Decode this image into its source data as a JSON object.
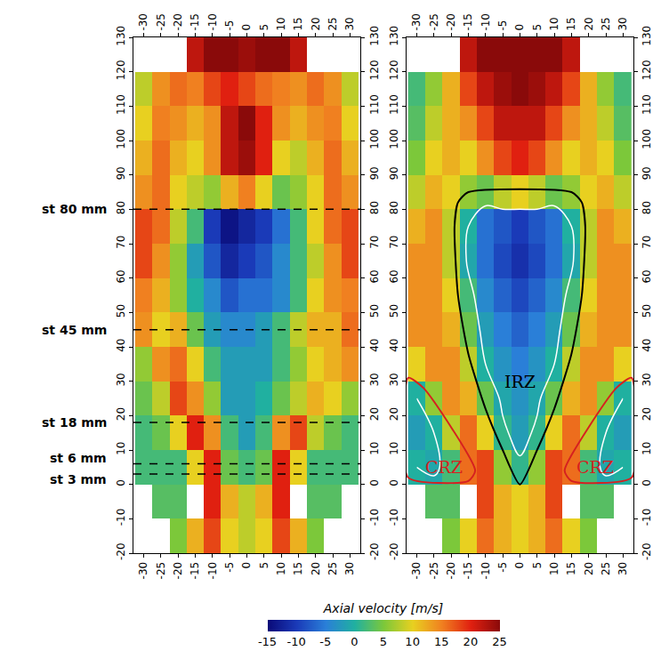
{
  "chart_data": [
    {
      "type": "heatmap",
      "x": [
        -30,
        -25,
        -20,
        -15,
        -10,
        -5,
        0,
        5,
        10,
        15,
        20,
        25,
        30
      ],
      "y": [
        -15,
        -5,
        5,
        15,
        25,
        35,
        45,
        55,
        65,
        75,
        85,
        95,
        105,
        115,
        125
      ],
      "z": [
        [
          null,
          null,
          5,
          12,
          18,
          10,
          8,
          10,
          18,
          12,
          5,
          null,
          null
        ],
        [
          null,
          3,
          3,
          null,
          20,
          12,
          8,
          12,
          20,
          null,
          3,
          3,
          null
        ],
        [
          2,
          2,
          2,
          10,
          20,
          4,
          2,
          4,
          20,
          10,
          2,
          2,
          2
        ],
        [
          2,
          4,
          10,
          20,
          14,
          2,
          -2,
          2,
          14,
          18,
          8,
          4,
          2
        ],
        [
          4,
          8,
          18,
          14,
          6,
          -2,
          -2,
          0,
          4,
          8,
          12,
          10,
          6
        ],
        [
          6,
          14,
          16,
          10,
          2,
          -2,
          -2,
          -2,
          2,
          6,
          10,
          12,
          14
        ],
        [
          14,
          10,
          12,
          4,
          -2,
          -4,
          -4,
          -2,
          2,
          8,
          12,
          12,
          16
        ],
        [
          15,
          12,
          6,
          0,
          -4,
          -8,
          -6,
          -6,
          -4,
          2,
          10,
          14,
          15
        ],
        [
          18,
          14,
          6,
          -2,
          -8,
          -12,
          -10,
          -8,
          -4,
          2,
          8,
          14,
          18
        ],
        [
          18,
          16,
          8,
          2,
          -10,
          -14,
          -12,
          -10,
          -6,
          2,
          10,
          16,
          18
        ],
        [
          14,
          16,
          10,
          8,
          6,
          12,
          15,
          10,
          4,
          6,
          10,
          16,
          14
        ],
        [
          12,
          16,
          12,
          10,
          14,
          22,
          24,
          20,
          10,
          8,
          12,
          16,
          12
        ],
        [
          10,
          15,
          14,
          12,
          14,
          22,
          25,
          20,
          14,
          12,
          14,
          15,
          10
        ],
        [
          8,
          14,
          16,
          15,
          18,
          20,
          18,
          16,
          15,
          14,
          16,
          14,
          8
        ],
        [
          null,
          null,
          null,
          22,
          25,
          25,
          24,
          25,
          25,
          22,
          null,
          null,
          null
        ]
      ],
      "xlim": [
        -33,
        33
      ],
      "ylim": [
        -20,
        130
      ],
      "xticks": [
        -30,
        -25,
        -20,
        -15,
        -10,
        -5,
        0,
        5,
        10,
        15,
        20,
        25,
        30
      ],
      "yticks": [
        -20,
        -10,
        0,
        10,
        20,
        30,
        40,
        50,
        60,
        70,
        80,
        90,
        100,
        110,
        120,
        130
      ],
      "stations": [
        {
          "label": "st 80 mm",
          "y": 80
        },
        {
          "label": "st 45 mm",
          "y": 45
        },
        {
          "label": "st 18 mm",
          "y": 18
        },
        {
          "label": "st 6 mm",
          "y": 6
        },
        {
          "label": "st 3 mm",
          "y": 3
        }
      ]
    },
    {
      "type": "heatmap",
      "x": [
        -30,
        -25,
        -20,
        -15,
        -10,
        -5,
        0,
        5,
        10,
        15,
        20,
        25,
        30
      ],
      "y": [
        -15,
        -5,
        5,
        15,
        25,
        35,
        45,
        55,
        65,
        75,
        85,
        95,
        105,
        115,
        125
      ],
      "z": [
        [
          null,
          null,
          5,
          10,
          16,
          12,
          10,
          12,
          16,
          10,
          5,
          null,
          null
        ],
        [
          null,
          3,
          3,
          null,
          18,
          12,
          10,
          12,
          18,
          null,
          3,
          3,
          null
        ],
        [
          0,
          -1,
          2,
          16,
          18,
          6,
          1,
          6,
          18,
          16,
          2,
          -1,
          0
        ],
        [
          -2,
          0,
          8,
          16,
          10,
          1,
          -2,
          1,
          10,
          16,
          8,
          0,
          -2
        ],
        [
          0,
          6,
          14,
          12,
          4,
          -1,
          -3,
          -1,
          4,
          12,
          14,
          6,
          0
        ],
        [
          10,
          14,
          14,
          8,
          0,
          -3,
          -5,
          -3,
          0,
          8,
          14,
          14,
          10
        ],
        [
          14,
          14,
          12,
          4,
          -2,
          -5,
          -7,
          -5,
          -2,
          4,
          12,
          14,
          14
        ],
        [
          14,
          14,
          10,
          2,
          -4,
          -7,
          -9,
          -7,
          -4,
          2,
          10,
          14,
          14
        ],
        [
          14,
          14,
          8,
          -1,
          -6,
          -9,
          -11,
          -9,
          -6,
          -1,
          8,
          14,
          14
        ],
        [
          12,
          14,
          8,
          0,
          -6,
          -8,
          -10,
          -8,
          -6,
          0,
          8,
          14,
          12
        ],
        [
          8,
          12,
          10,
          6,
          4,
          8,
          10,
          8,
          4,
          6,
          10,
          12,
          8
        ],
        [
          5,
          10,
          12,
          10,
          14,
          18,
          20,
          18,
          14,
          10,
          12,
          10,
          5
        ],
        [
          3,
          8,
          12,
          14,
          18,
          22,
          22,
          22,
          18,
          14,
          12,
          8,
          3
        ],
        [
          2,
          6,
          12,
          18,
          22,
          24,
          25,
          24,
          22,
          18,
          12,
          6,
          2
        ],
        [
          null,
          null,
          null,
          22,
          25,
          25,
          25,
          25,
          25,
          22,
          null,
          null,
          null
        ]
      ],
      "xlim": [
        -33,
        33
      ],
      "ylim": [
        -20,
        130
      ],
      "xticks": [
        -30,
        -25,
        -20,
        -15,
        -10,
        -5,
        0,
        5,
        10,
        15,
        20,
        25,
        30
      ],
      "yticks": [
        -20,
        -10,
        0,
        10,
        20,
        30,
        40,
        50,
        60,
        70,
        80,
        90,
        100,
        110,
        120,
        130
      ],
      "isoline": 0,
      "regions": [
        {
          "label": "IRZ",
          "color": "black",
          "label_x": 0,
          "label_y": 30,
          "x": [
            0,
            -5,
            -10,
            -15,
            -18,
            -19,
            -18,
            -15,
            15,
            18,
            19,
            18,
            15,
            10,
            5,
            0
          ],
          "y": [
            0,
            10,
            22,
            38,
            55,
            75,
            82,
            85,
            85,
            82,
            75,
            55,
            38,
            22,
            10,
            0
          ]
        },
        {
          "label": "CRZ",
          "color": "#d62020",
          "label_x": -22,
          "label_y": 5,
          "x": [
            -32.5,
            -32.5,
            -15,
            -13,
            -28,
            -32.5
          ],
          "y": [
            31,
            2,
            1,
            4,
            28,
            31
          ]
        },
        {
          "label": "CRZ",
          "color": "#d62020",
          "label_x": 22,
          "label_y": 5,
          "x": [
            32.5,
            32.5,
            15,
            13,
            28,
            32.5
          ],
          "y": [
            31,
            2,
            1,
            4,
            28,
            31
          ]
        }
      ]
    }
  ],
  "colorbar": {
    "title": "Axial velocity [m/s]",
    "range": [
      -15,
      25
    ],
    "ticks": [
      -15,
      -10,
      -5,
      0,
      5,
      10,
      15,
      20,
      25
    ]
  }
}
